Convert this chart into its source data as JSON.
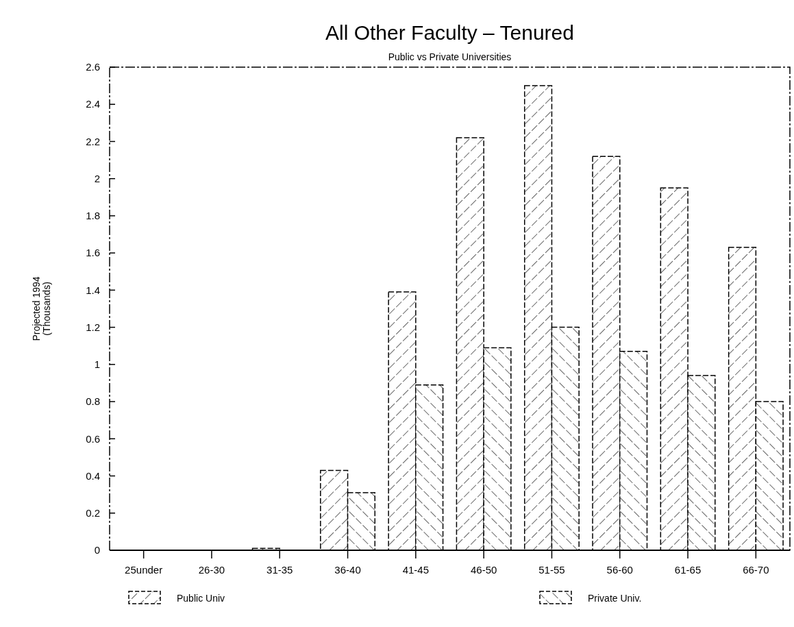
{
  "chart_data": {
    "type": "bar",
    "title": "All Other Faculty – Tenured",
    "subtitle": "Public vs Private Universities",
    "ylabel": "Projected 1994\n(Thousands)",
    "categories": [
      "25under",
      "26-30",
      "31-35",
      "36-40",
      "41-45",
      "46-50",
      "51-55",
      "56-60",
      "61-65",
      "66-70"
    ],
    "series": [
      {
        "name": "Public Univ",
        "color": "#000000",
        "values": [
          0,
          0,
          0.01,
          0.43,
          1.39,
          2.22,
          2.5,
          2.12,
          1.95,
          1.63
        ]
      },
      {
        "name": "Private Univ.",
        "color": "#000000",
        "values": [
          0,
          0,
          0,
          0.31,
          0.89,
          1.09,
          1.2,
          1.07,
          0.94,
          0.8
        ]
      }
    ],
    "ylim": [
      0,
      2.6
    ],
    "yticks": [
      0,
      0.2,
      0.4,
      0.6,
      0.8,
      1,
      1.2,
      1.4,
      1.6,
      1.8,
      2,
      2.2,
      2.4,
      2.6
    ],
    "grid": false,
    "legend": "bottom"
  }
}
